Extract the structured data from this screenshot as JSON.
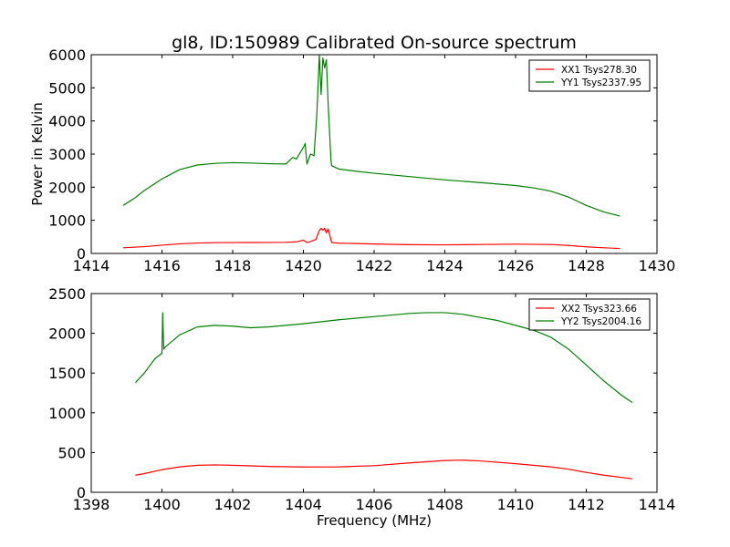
{
  "title": "gl8, ID:150989 Calibrated On-source spectrum",
  "xlabel": "Frequency (MHz)",
  "ylabel": "Power in Kelvin",
  "colors": {
    "xx": "#ff0000",
    "yy": "#008000"
  },
  "chart_data": [
    {
      "type": "line",
      "xlim": [
        1414,
        1430
      ],
      "ylim": [
        0,
        6000
      ],
      "xticks": [
        "1414",
        "1416",
        "1418",
        "1420",
        "1422",
        "1424",
        "1426",
        "1428",
        "1430"
      ],
      "yticks": [
        "0",
        "1000",
        "2000",
        "3000",
        "4000",
        "5000",
        "6000"
      ],
      "legend_position": "top-right",
      "series": [
        {
          "name": "XX1 Tsys278.30",
          "color": "#ff0000",
          "x": [
            1414.9,
            1415.5,
            1416,
            1416.5,
            1417,
            1417.5,
            1418,
            1418.5,
            1419,
            1419.5,
            1419.8,
            1420.0,
            1420.1,
            1420.2,
            1420.35,
            1420.45,
            1420.5,
            1420.55,
            1420.6,
            1420.65,
            1420.7,
            1420.8,
            1421,
            1421.5,
            1422,
            1423,
            1424,
            1425,
            1426,
            1427,
            1427.5,
            1428,
            1428.5,
            1428.95
          ],
          "y": [
            170,
            205,
            250,
            290,
            315,
            325,
            328,
            330,
            332,
            335,
            350,
            400,
            330,
            360,
            420,
            690,
            760,
            700,
            760,
            620,
            740,
            330,
            310,
            300,
            285,
            265,
            260,
            270,
            280,
            270,
            240,
            200,
            170,
            150
          ]
        },
        {
          "name": "YY1 Tsys2337.95",
          "color": "#008000",
          "x": [
            1414.9,
            1415.2,
            1415.5,
            1416,
            1416.5,
            1417,
            1417.5,
            1418,
            1418.5,
            1419,
            1419.5,
            1419.7,
            1419.8,
            1420.0,
            1420.05,
            1420.1,
            1420.2,
            1420.3,
            1420.38,
            1420.45,
            1420.5,
            1420.55,
            1420.6,
            1420.65,
            1420.7,
            1420.78,
            1420.8,
            1420.9,
            1421,
            1421.5,
            1422,
            1423,
            1424,
            1425,
            1426,
            1426.5,
            1427,
            1427.5,
            1428,
            1428.5,
            1428.95
          ],
          "y": [
            1450,
            1650,
            1900,
            2250,
            2530,
            2670,
            2720,
            2740,
            2730,
            2710,
            2700,
            2900,
            2850,
            3200,
            3320,
            2700,
            3000,
            2950,
            4200,
            6000,
            4800,
            5900,
            5600,
            5850,
            4500,
            2800,
            2650,
            2600,
            2550,
            2480,
            2420,
            2320,
            2220,
            2140,
            2050,
            1980,
            1880,
            1700,
            1450,
            1250,
            1130
          ]
        }
      ]
    },
    {
      "type": "line",
      "xlim": [
        1398,
        1414
      ],
      "ylim": [
        0,
        2500
      ],
      "xticks": [
        "1398",
        "1400",
        "1402",
        "1404",
        "1406",
        "1408",
        "1410",
        "1412",
        "1414"
      ],
      "yticks": [
        "0",
        "500",
        "1000",
        "1500",
        "2000",
        "2500"
      ],
      "legend_position": "top-right",
      "series": [
        {
          "name": "XX2 Tsys323.66",
          "color": "#ff0000",
          "x": [
            1399.25,
            1399.5,
            1400,
            1400.5,
            1401,
            1401.5,
            1402,
            1403,
            1404,
            1405,
            1406,
            1407,
            1408,
            1408.5,
            1409,
            1410,
            1411,
            1411.5,
            1412,
            1412.5,
            1413.3
          ],
          "y": [
            215,
            235,
            285,
            320,
            340,
            345,
            340,
            325,
            318,
            320,
            335,
            370,
            400,
            405,
            395,
            360,
            320,
            290,
            250,
            215,
            170
          ]
        },
        {
          "name": "YY2 Tsys2004.16",
          "color": "#008000",
          "x": [
            1399.25,
            1399.5,
            1399.8,
            1400,
            1400.02,
            1400.05,
            1400.1,
            1400.5,
            1401,
            1401.5,
            1402,
            1402.5,
            1403,
            1404,
            1405,
            1406,
            1407,
            1407.5,
            1408,
            1408.5,
            1409,
            1409.5,
            1410,
            1410.5,
            1411,
            1411.5,
            1412,
            1412.5,
            1413,
            1413.3
          ],
          "y": [
            1380,
            1500,
            1680,
            1750,
            2260,
            1800,
            1830,
            1980,
            2080,
            2100,
            2090,
            2070,
            2080,
            2120,
            2170,
            2210,
            2250,
            2260,
            2260,
            2240,
            2200,
            2160,
            2100,
            2040,
            1950,
            1800,
            1600,
            1400,
            1220,
            1130
          ]
        }
      ]
    }
  ]
}
